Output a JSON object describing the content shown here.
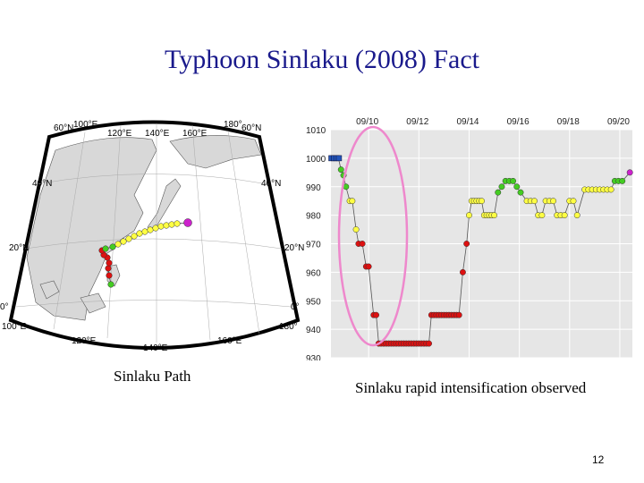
{
  "title": "Typhoon Sinlaku (2008) Fact",
  "map_caption": "Sinlaku Path",
  "chart_caption": "Sinlaku rapid intensification observed",
  "page_number": "12",
  "map_labels": {
    "top": [
      "100°E",
      "120°E",
      "140°E",
      "160°E",
      "180°"
    ],
    "bottom": [
      "100°E",
      "120°E",
      "140°E",
      "160°E",
      "180°"
    ],
    "left": [
      "60°N",
      "40°N",
      "20°N",
      "0°"
    ],
    "right": [
      "60°N",
      "40°N",
      "20°N",
      "0°"
    ]
  },
  "colors": {
    "title": "#1a1a8c",
    "depression": "#2255bb",
    "tropical_storm": "#ffff44",
    "severe_tropical_storm": "#44cc22",
    "typhoon": "#dd1111",
    "extratropical": "#cc22cc",
    "highlight_ellipse": "#ee88cc",
    "chart_background": "#e6e6e6"
  },
  "chart_data": {
    "type": "scatter",
    "title": "",
    "xlabel": "",
    "ylabel": "",
    "x_tick_labels": [
      "09/10",
      "09/12",
      "09/14",
      "09/16",
      "09/18",
      "09/20"
    ],
    "y_tick_labels": [
      "1010",
      "1000",
      "990",
      "980",
      "970",
      "960",
      "950",
      "940",
      "930"
    ],
    "ylim": [
      930,
      1010
    ],
    "x_range_days": [
      8.5,
      20.5
    ],
    "legend": "none",
    "grid": true,
    "points": [
      {
        "day": 8.5,
        "hPa": 1000,
        "cat": "TD"
      },
      {
        "day": 8.6,
        "hPa": 1000,
        "cat": "TD"
      },
      {
        "day": 8.7,
        "hPa": 1000,
        "cat": "TD"
      },
      {
        "day": 8.8,
        "hPa": 1000,
        "cat": "TD"
      },
      {
        "day": 8.9,
        "hPa": 996,
        "cat": "STS"
      },
      {
        "day": 9.0,
        "hPa": 994,
        "cat": "STS"
      },
      {
        "day": 9.1,
        "hPa": 990,
        "cat": "STS"
      },
      {
        "day": 9.25,
        "hPa": 985,
        "cat": "TS"
      },
      {
        "day": 9.35,
        "hPa": 985,
        "cat": "TS"
      },
      {
        "day": 9.5,
        "hPa": 975,
        "cat": "TS"
      },
      {
        "day": 9.6,
        "hPa": 970,
        "cat": "TY"
      },
      {
        "day": 9.75,
        "hPa": 970,
        "cat": "TY"
      },
      {
        "day": 9.9,
        "hPa": 962,
        "cat": "TY"
      },
      {
        "day": 10.0,
        "hPa": 962,
        "cat": "TY"
      },
      {
        "day": 10.2,
        "hPa": 945,
        "cat": "TY"
      },
      {
        "day": 10.3,
        "hPa": 945,
        "cat": "TY"
      },
      {
        "day": 10.4,
        "hPa": 935,
        "cat": "TY"
      },
      {
        "day": 10.5,
        "hPa": 935,
        "cat": "TY"
      },
      {
        "day": 10.6,
        "hPa": 935,
        "cat": "TY"
      },
      {
        "day": 10.7,
        "hPa": 935,
        "cat": "TY"
      },
      {
        "day": 10.8,
        "hPa": 935,
        "cat": "TY"
      },
      {
        "day": 10.9,
        "hPa": 935,
        "cat": "TY"
      },
      {
        "day": 11.0,
        "hPa": 935,
        "cat": "TY"
      },
      {
        "day": 11.1,
        "hPa": 935,
        "cat": "TY"
      },
      {
        "day": 11.2,
        "hPa": 935,
        "cat": "TY"
      },
      {
        "day": 11.3,
        "hPa": 935,
        "cat": "TY"
      },
      {
        "day": 11.4,
        "hPa": 935,
        "cat": "TY"
      },
      {
        "day": 11.5,
        "hPa": 935,
        "cat": "TY"
      },
      {
        "day": 11.6,
        "hPa": 935,
        "cat": "TY"
      },
      {
        "day": 11.7,
        "hPa": 935,
        "cat": "TY"
      },
      {
        "day": 11.8,
        "hPa": 935,
        "cat": "TY"
      },
      {
        "day": 11.9,
        "hPa": 935,
        "cat": "TY"
      },
      {
        "day": 12.0,
        "hPa": 935,
        "cat": "TY"
      },
      {
        "day": 12.1,
        "hPa": 935,
        "cat": "TY"
      },
      {
        "day": 12.2,
        "hPa": 935,
        "cat": "TY"
      },
      {
        "day": 12.3,
        "hPa": 935,
        "cat": "TY"
      },
      {
        "day": 12.4,
        "hPa": 935,
        "cat": "TY"
      },
      {
        "day": 12.5,
        "hPa": 945,
        "cat": "TY"
      },
      {
        "day": 12.6,
        "hPa": 945,
        "cat": "TY"
      },
      {
        "day": 12.7,
        "hPa": 945,
        "cat": "TY"
      },
      {
        "day": 12.8,
        "hPa": 945,
        "cat": "TY"
      },
      {
        "day": 12.9,
        "hPa": 945,
        "cat": "TY"
      },
      {
        "day": 13.0,
        "hPa": 945,
        "cat": "TY"
      },
      {
        "day": 13.1,
        "hPa": 945,
        "cat": "TY"
      },
      {
        "day": 13.2,
        "hPa": 945,
        "cat": "TY"
      },
      {
        "day": 13.3,
        "hPa": 945,
        "cat": "TY"
      },
      {
        "day": 13.4,
        "hPa": 945,
        "cat": "TY"
      },
      {
        "day": 13.5,
        "hPa": 945,
        "cat": "TY"
      },
      {
        "day": 13.6,
        "hPa": 945,
        "cat": "TY"
      },
      {
        "day": 13.75,
        "hPa": 960,
        "cat": "TY"
      },
      {
        "day": 13.9,
        "hPa": 970,
        "cat": "TY"
      },
      {
        "day": 14.0,
        "hPa": 980,
        "cat": "TS"
      },
      {
        "day": 14.1,
        "hPa": 985,
        "cat": "TS"
      },
      {
        "day": 14.2,
        "hPa": 985,
        "cat": "TS"
      },
      {
        "day": 14.3,
        "hPa": 985,
        "cat": "TS"
      },
      {
        "day": 14.4,
        "hPa": 985,
        "cat": "TS"
      },
      {
        "day": 14.5,
        "hPa": 985,
        "cat": "TS"
      },
      {
        "day": 14.6,
        "hPa": 980,
        "cat": "TS"
      },
      {
        "day": 14.7,
        "hPa": 980,
        "cat": "TS"
      },
      {
        "day": 14.8,
        "hPa": 980,
        "cat": "TS"
      },
      {
        "day": 14.9,
        "hPa": 980,
        "cat": "TS"
      },
      {
        "day": 15.0,
        "hPa": 980,
        "cat": "TS"
      },
      {
        "day": 15.15,
        "hPa": 988,
        "cat": "STS"
      },
      {
        "day": 15.3,
        "hPa": 990,
        "cat": "STS"
      },
      {
        "day": 15.45,
        "hPa": 992,
        "cat": "STS"
      },
      {
        "day": 15.6,
        "hPa": 992,
        "cat": "STS"
      },
      {
        "day": 15.75,
        "hPa": 992,
        "cat": "STS"
      },
      {
        "day": 15.9,
        "hPa": 990,
        "cat": "STS"
      },
      {
        "day": 16.05,
        "hPa": 988,
        "cat": "STS"
      },
      {
        "day": 16.3,
        "hPa": 985,
        "cat": "TS"
      },
      {
        "day": 16.45,
        "hPa": 985,
        "cat": "TS"
      },
      {
        "day": 16.6,
        "hPa": 985,
        "cat": "TS"
      },
      {
        "day": 16.75,
        "hPa": 980,
        "cat": "TS"
      },
      {
        "day": 16.9,
        "hPa": 980,
        "cat": "TS"
      },
      {
        "day": 17.05,
        "hPa": 985,
        "cat": "TS"
      },
      {
        "day": 17.2,
        "hPa": 985,
        "cat": "TS"
      },
      {
        "day": 17.35,
        "hPa": 985,
        "cat": "TS"
      },
      {
        "day": 17.5,
        "hPa": 980,
        "cat": "TS"
      },
      {
        "day": 17.65,
        "hPa": 980,
        "cat": "TS"
      },
      {
        "day": 17.8,
        "hPa": 980,
        "cat": "TS"
      },
      {
        "day": 18.0,
        "hPa": 985,
        "cat": "TS"
      },
      {
        "day": 18.15,
        "hPa": 985,
        "cat": "TS"
      },
      {
        "day": 18.3,
        "hPa": 980,
        "cat": "TS"
      },
      {
        "day": 18.6,
        "hPa": 989,
        "cat": "TS"
      },
      {
        "day": 18.75,
        "hPa": 989,
        "cat": "TS"
      },
      {
        "day": 18.9,
        "hPa": 989,
        "cat": "TS"
      },
      {
        "day": 19.05,
        "hPa": 989,
        "cat": "TS"
      },
      {
        "day": 19.2,
        "hPa": 989,
        "cat": "TS"
      },
      {
        "day": 19.35,
        "hPa": 989,
        "cat": "TS"
      },
      {
        "day": 19.5,
        "hPa": 989,
        "cat": "TS"
      },
      {
        "day": 19.65,
        "hPa": 989,
        "cat": "TS"
      },
      {
        "day": 19.8,
        "hPa": 992,
        "cat": "STS"
      },
      {
        "day": 19.95,
        "hPa": 992,
        "cat": "STS"
      },
      {
        "day": 20.1,
        "hPa": 992,
        "cat": "STS"
      },
      {
        "day": 20.4,
        "hPa": 995,
        "cat": "EX"
      }
    ]
  }
}
